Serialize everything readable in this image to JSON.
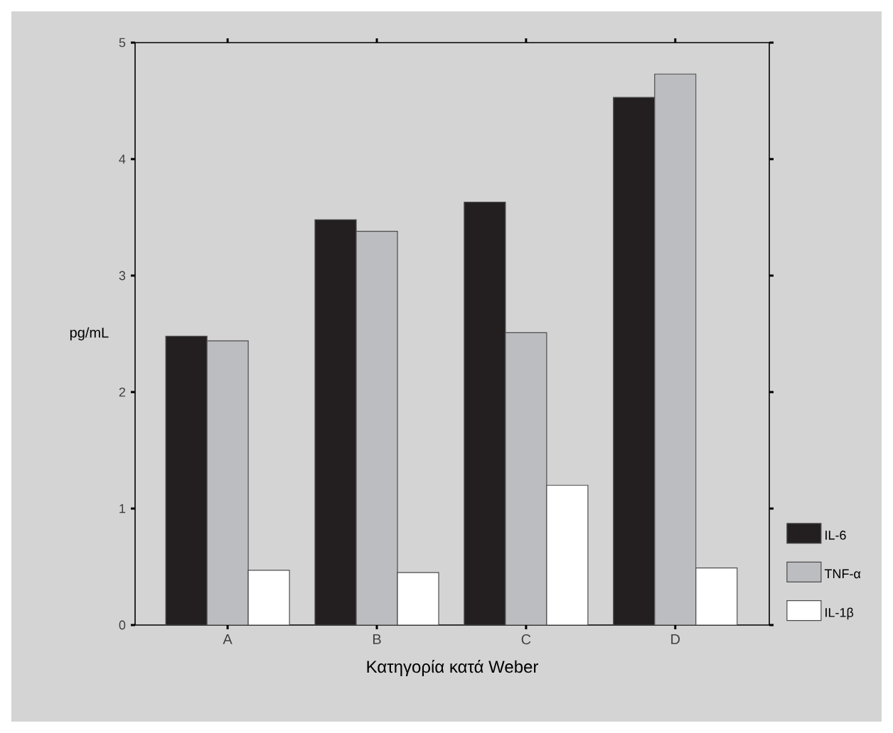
{
  "chart_data": {
    "type": "bar",
    "xlabel": "Κατηγορία κατά  Weber",
    "ylabel": "pg/mL",
    "categories": [
      "A",
      "B",
      "C",
      "D"
    ],
    "series": [
      {
        "name": "IL-6",
        "color": "#231f20",
        "values": [
          2.48,
          3.48,
          3.63,
          4.53
        ]
      },
      {
        "name": "TNF-α",
        "color": "#bcbdc1",
        "values": [
          2.44,
          3.38,
          2.51,
          4.73
        ]
      },
      {
        "name": "IL-1β",
        "color": "#ffffff",
        "values": [
          0.47,
          0.45,
          1.2,
          0.49
        ]
      }
    ],
    "ylim": [
      0,
      5
    ],
    "yticks": [
      0,
      1,
      2,
      3,
      4,
      5
    ],
    "legend": "bottom right",
    "grid": false
  }
}
